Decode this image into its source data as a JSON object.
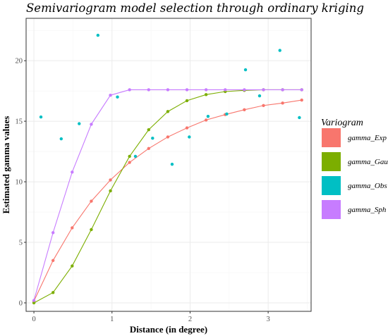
{
  "chart_data": {
    "type": "line",
    "title": "Semivariogram model selection through ordinary kriging",
    "xlabel": "Distance (in degree)",
    "ylabel": "Estimated gamma values",
    "xlim": [
      -0.1,
      3.55
    ],
    "ylim": [
      -0.7,
      23.5
    ],
    "x_ticks": [
      "0",
      "1",
      "2",
      "3"
    ],
    "y_ticks": [
      "0",
      "5",
      "10",
      "15",
      "20"
    ],
    "grid": true,
    "legend": {
      "title": "Variogram",
      "position": "right"
    },
    "series": [
      {
        "name": "gamma_Exp",
        "color": "#F8766D",
        "style": "line+points",
        "x": [
          0,
          0.245,
          0.49,
          0.735,
          0.98,
          1.225,
          1.47,
          1.715,
          1.96,
          2.205,
          2.45,
          2.695,
          2.94,
          3.185,
          3.43
        ],
        "y": [
          0.15,
          3.5,
          6.2,
          8.4,
          10.15,
          11.6,
          12.75,
          13.7,
          14.45,
          15.1,
          15.55,
          15.95,
          16.3,
          16.5,
          16.75
        ]
      },
      {
        "name": "gamma_Gau",
        "color": "#7CAE00",
        "style": "line+points",
        "x": [
          0,
          0.245,
          0.49,
          0.735,
          0.98,
          1.225,
          1.47,
          1.715,
          1.96,
          2.205,
          2.45,
          2.695,
          2.94,
          3.185,
          3.43
        ],
        "y": [
          0,
          0.85,
          3.05,
          6.05,
          9.25,
          12.1,
          14.3,
          15.8,
          16.7,
          17.2,
          17.45,
          17.55,
          17.6,
          17.6,
          17.6
        ]
      },
      {
        "name": "gamma_Obs",
        "color": "#00BFC4",
        "style": "points",
        "x": [
          0.09,
          0.35,
          0.58,
          0.82,
          1.07,
          1.3,
          1.52,
          1.77,
          1.99,
          2.23,
          2.47,
          2.71,
          2.89,
          3.15,
          3.4
        ],
        "y": [
          15.35,
          13.55,
          14.8,
          22.1,
          17.0,
          12.1,
          13.6,
          11.45,
          13.7,
          15.4,
          15.6,
          19.25,
          17.1,
          20.85,
          15.3
        ]
      },
      {
        "name": "gamma_Sph",
        "color": "#C77CFF",
        "style": "line+points",
        "x": [
          0,
          0.245,
          0.49,
          0.735,
          0.98,
          1.225,
          1.47,
          1.715,
          1.96,
          2.205,
          2.45,
          2.695,
          2.94,
          3.185,
          3.43
        ],
        "y": [
          0.2,
          5.8,
          10.8,
          14.75,
          17.15,
          17.6,
          17.6,
          17.6,
          17.6,
          17.6,
          17.6,
          17.6,
          17.6,
          17.6,
          17.6
        ]
      }
    ]
  }
}
